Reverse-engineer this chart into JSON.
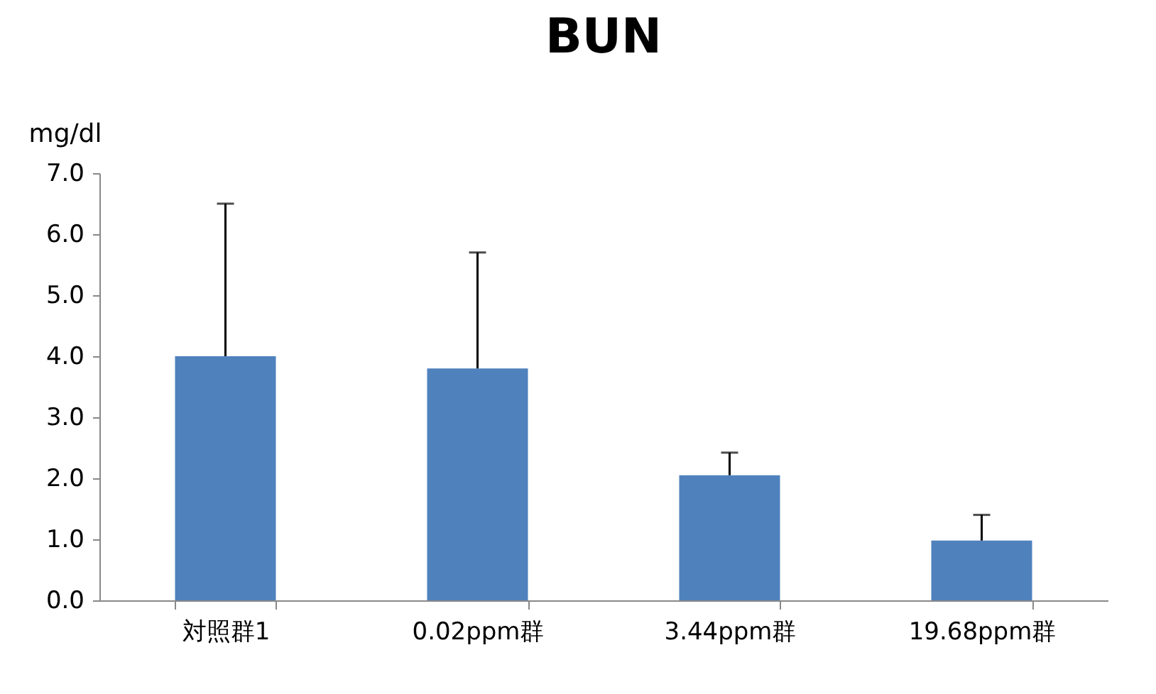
{
  "chart_data": {
    "type": "bar",
    "title": "BUN",
    "ylabel": "mg/dl",
    "categories": [
      "対照群1",
      "0.02ppm群",
      "3.44ppm群",
      "19.68ppm群"
    ],
    "values": [
      4.0,
      3.8,
      2.05,
      0.98
    ],
    "errors": [
      [
        4.0,
        6.5
      ],
      [
        3.8,
        5.7
      ],
      [
        2.05,
        2.42
      ],
      [
        0.98,
        1.4
      ]
    ],
    "color": "#4f81bd",
    "ylim": [
      0,
      7
    ],
    "yticks": [
      {
        "value": 0,
        "label": "0.0"
      },
      {
        "value": 1,
        "label": "1.0"
      },
      {
        "value": 2,
        "label": "2.0"
      },
      {
        "value": 3,
        "label": "3.0"
      },
      {
        "value": 4,
        "label": "4.0"
      },
      {
        "value": 5,
        "label": "5.0"
      },
      {
        "value": 6,
        "label": "6.0"
      },
      {
        "value": 7,
        "label": "7.0"
      }
    ],
    "grid": false
  }
}
